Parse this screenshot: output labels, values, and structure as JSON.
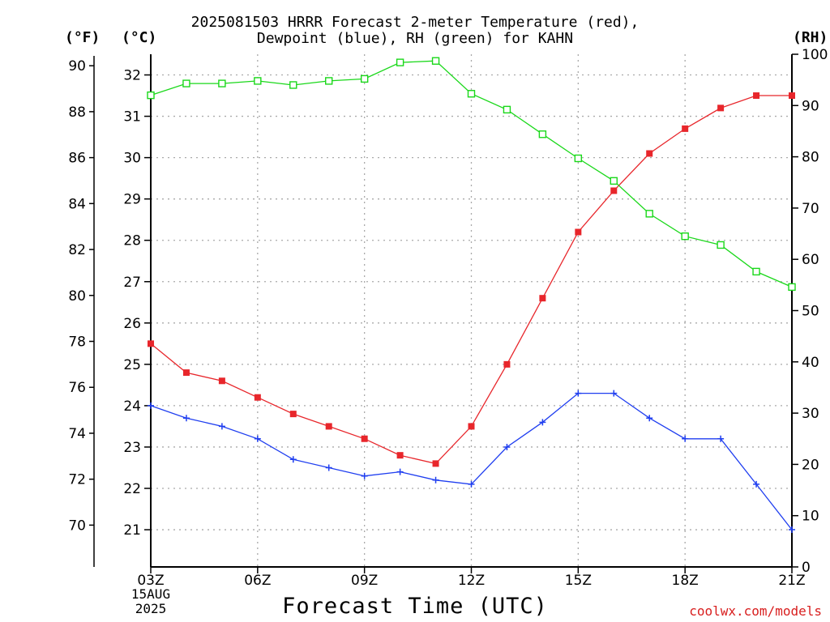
{
  "title": {
    "line1": "2025081503 HRRR Forecast 2-meter Temperature (red),",
    "line2": "Dewpoint (blue), RH (green) for KAHN"
  },
  "units": {
    "fahrenheit": "(°F)",
    "celsius": "(°C)",
    "rh": "(RH)"
  },
  "xlabel": "Forecast Time (UTC)",
  "date_label": {
    "day": "15AUG",
    "year": "2025"
  },
  "credit": "coolwx.com/models",
  "colors": {
    "temperature": "#e8262b",
    "dewpoint": "#1f3ef0",
    "rh": "#1ad81a",
    "grid": "#a9a9a9"
  },
  "chart_data": {
    "type": "line",
    "x_ticks": [
      "03Z",
      "06Z",
      "09Z",
      "12Z",
      "15Z",
      "18Z",
      "21Z"
    ],
    "x_hours": [
      3,
      4,
      5,
      6,
      7,
      8,
      9,
      10,
      11,
      12,
      13,
      14,
      15,
      16,
      17,
      18,
      19,
      20,
      21
    ],
    "xlim": [
      3,
      21
    ],
    "y_celsius": {
      "ticks": [
        21,
        22,
        23,
        24,
        25,
        26,
        27,
        28,
        29,
        30,
        31,
        32
      ],
      "ylim": [
        20.1,
        32.5
      ]
    },
    "y_fahrenheit": {
      "ticks": [
        70,
        72,
        74,
        76,
        78,
        80,
        82,
        84,
        86,
        88,
        90
      ]
    },
    "y_rh": {
      "ticks": [
        0,
        10,
        20,
        30,
        40,
        50,
        60,
        70,
        80,
        90,
        100
      ],
      "ylim": [
        0,
        100
      ]
    },
    "grid": true,
    "series": [
      {
        "name": "Temperature",
        "axis": "celsius",
        "marker": "square",
        "values": [
          25.5,
          24.8,
          24.6,
          24.2,
          23.8,
          23.5,
          23.2,
          22.8,
          22.6,
          23.5,
          25.0,
          26.6,
          28.2,
          29.2,
          30.1,
          30.7,
          31.2,
          31.5,
          31.5
        ]
      },
      {
        "name": "Dewpoint",
        "axis": "celsius",
        "marker": "plus",
        "values": [
          24.0,
          23.7,
          23.5,
          23.2,
          22.7,
          22.5,
          22.3,
          22.4,
          22.2,
          22.1,
          23.0,
          23.6,
          24.3,
          24.3,
          23.7,
          23.2,
          23.2,
          22.1,
          21.0
        ]
      },
      {
        "name": "RH",
        "axis": "rh",
        "marker": "open-square",
        "values": [
          92.0,
          94.3,
          94.3,
          94.8,
          94.0,
          94.8,
          95.2,
          98.4,
          98.7,
          92.3,
          89.2,
          84.4,
          79.7,
          75.3,
          68.9,
          64.5,
          62.8,
          57.6,
          54.6
        ]
      }
    ]
  }
}
